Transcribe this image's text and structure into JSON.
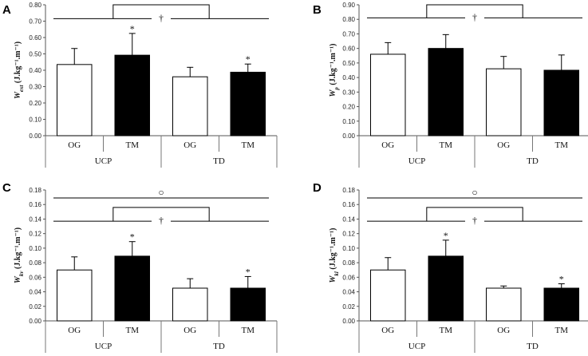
{
  "chart_data": [
    {
      "type": "bar",
      "panel": "A",
      "ylabel_main": "W",
      "ylabel_sub": "ext",
      "ylabel_unit": " (J.kg⁻¹.m⁻¹)",
      "ylim": [
        0,
        0.8
      ],
      "ytick_step": 0.1,
      "ytick_labels": [
        "0.00",
        "0.10",
        "0.20",
        "0.30",
        "0.40",
        "0.50",
        "0.60",
        "0.70",
        "0.80"
      ],
      "categories": [
        "OG",
        "TM",
        "OG",
        "TM"
      ],
      "groups": [
        "UCP",
        "TD"
      ],
      "values": [
        0.435,
        0.492,
        0.36,
        0.388
      ],
      "errors": [
        0.098,
        0.133,
        0.058,
        0.05
      ],
      "fills": [
        "#ffffff",
        "#000000",
        "#ffffff",
        "#000000"
      ],
      "stars": [
        "",
        "*",
        "",
        "*"
      ],
      "dagger": "†",
      "dagger_top_value": 0.8,
      "dagger_arm_value": 0.715,
      "circle": ""
    },
    {
      "type": "bar",
      "panel": "B",
      "ylabel_main": "W",
      "ylabel_sub": "p",
      "ylabel_unit": " (J.kg⁻¹.m⁻¹)",
      "ylim": [
        0,
        0.9
      ],
      "ytick_step": 0.1,
      "ytick_labels": [
        "0.00",
        "0.10",
        "0.20",
        "0.30",
        "0.40",
        "0.50",
        "0.60",
        "0.70",
        "0.80",
        "0.90"
      ],
      "categories": [
        "OG",
        "TM",
        "OG",
        "TM"
      ],
      "groups": [
        "UCP",
        "TD"
      ],
      "values": [
        0.56,
        0.6,
        0.46,
        0.45
      ],
      "errors": [
        0.08,
        0.095,
        0.085,
        0.105
      ],
      "fills": [
        "#ffffff",
        "#000000",
        "#ffffff",
        "#000000"
      ],
      "stars": [
        "",
        "",
        "",
        ""
      ],
      "dagger": "†",
      "dagger_top_value": 0.9,
      "dagger_arm_value": 0.81,
      "circle": ""
    },
    {
      "type": "bar",
      "panel": "C",
      "ylabel_main": "W",
      "ylabel_sub": "kv",
      "ylabel_unit": " (J.kg⁻¹.m⁻¹)",
      "ylim": [
        0,
        0.18
      ],
      "ytick_step": 0.02,
      "ytick_labels": [
        "0.00",
        "0.02",
        "0.04",
        "0.06",
        "0.08",
        "0.10",
        "0.12",
        "0.14",
        "0.16",
        "0.18"
      ],
      "categories": [
        "OG",
        "TM",
        "OG",
        "TM"
      ],
      "groups": [
        "UCP",
        "TD"
      ],
      "values": [
        0.07,
        0.089,
        0.045,
        0.045
      ],
      "errors": [
        0.018,
        0.02,
        0.013,
        0.016
      ],
      "fills": [
        "#ffffff",
        "#000000",
        "#ffffff",
        "#000000"
      ],
      "stars": [
        "",
        "*",
        "",
        "*"
      ],
      "dagger": "†",
      "dagger_top_value": 0.156,
      "dagger_arm_value": 0.137,
      "circle": "○",
      "circle_line_value": 0.169
    },
    {
      "type": "bar",
      "panel": "D",
      "ylabel_main": "W",
      "ylabel_sub": "kl",
      "ylabel_unit": " (J.kg⁻¹.m⁻¹)",
      "ylim": [
        0,
        0.18
      ],
      "ytick_step": 0.02,
      "ytick_labels": [
        "0.00",
        "0.02",
        "0.04",
        "0.06",
        "0.08",
        "0.10",
        "0.12",
        "0.14",
        "0.16",
        "0.18"
      ],
      "categories": [
        "OG",
        "TM",
        "OG",
        "TM"
      ],
      "groups": [
        "UCP",
        "TD"
      ],
      "values": [
        0.07,
        0.089,
        0.045,
        0.045
      ],
      "errors": [
        0.017,
        0.022,
        0.003,
        0.006
      ],
      "fills": [
        "#ffffff",
        "#000000",
        "#ffffff",
        "#000000"
      ],
      "stars": [
        "",
        "*",
        "",
        "*"
      ],
      "dagger": "†",
      "dagger_top_value": 0.156,
      "dagger_arm_value": 0.137,
      "circle": "○",
      "circle_line_value": 0.169
    }
  ]
}
